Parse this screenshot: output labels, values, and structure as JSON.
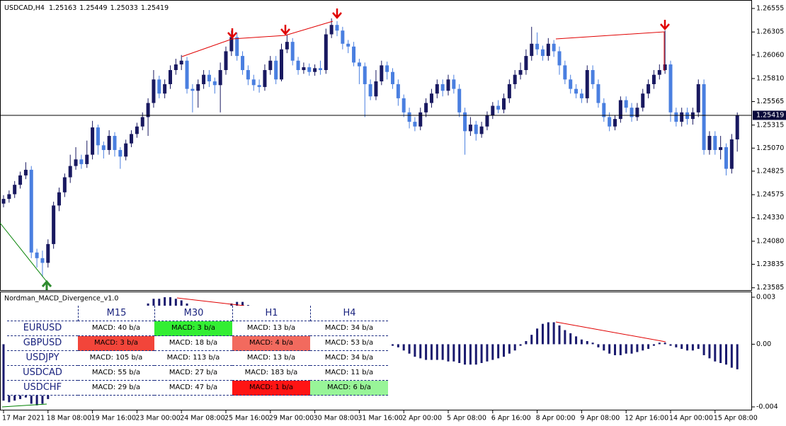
{
  "chart_data": [
    {
      "type": "candlestick",
      "title": "USDCAD,H4",
      "categories": [
        "17 Mar 2021",
        null,
        null,
        null,
        null,
        null,
        null,
        null,
        "18 Mar 08:00",
        null,
        null,
        null,
        null,
        null,
        null,
        null,
        "19 Mar 16:00",
        null,
        null,
        null,
        null,
        null,
        null,
        null,
        "23 Mar 00:00",
        null,
        null,
        null,
        null,
        null,
        null,
        null,
        "24 Mar 08:00",
        null,
        null,
        null,
        null,
        null,
        null,
        null,
        "25 Mar 16:00",
        null,
        null,
        null,
        null,
        null,
        null,
        null,
        "29 Mar 00:00",
        null,
        null,
        null,
        null,
        null,
        null,
        null,
        "30 Mar 08:00",
        null,
        null,
        null,
        null,
        null,
        null,
        null,
        "31 Mar 16:00",
        null,
        null,
        null,
        null,
        null,
        null,
        null,
        "2 Apr 00:00",
        null,
        null,
        null,
        null,
        null,
        null,
        null,
        "5 Apr 08:00",
        null,
        null,
        null,
        null,
        null,
        null,
        null,
        "6 Apr 16:00",
        null,
        null,
        null,
        null,
        null,
        null,
        null,
        "8 Apr 00:00",
        null,
        null,
        null,
        null,
        null,
        null,
        null,
        "9 Apr 08:00",
        null,
        null,
        null,
        null,
        null,
        null,
        null,
        "12 Apr 16:00",
        null,
        null,
        null,
        null,
        null,
        null,
        null,
        "14 Apr 00:00",
        null,
        null,
        null,
        null,
        null,
        null,
        null,
        "15 Apr 08:00",
        null,
        null,
        null,
        null
      ],
      "open": [
        1.2448,
        1.2453,
        1.2458,
        1.2468,
        1.2478,
        1.2484,
        1.2396,
        1.239,
        1.2385,
        1.2405,
        1.2446,
        1.246,
        1.2476,
        1.2488,
        1.2495,
        1.249,
        1.25,
        1.2529,
        1.251,
        1.2505,
        1.252,
        1.2505,
        1.2498,
        1.2512,
        1.2522,
        1.253,
        1.254,
        1.2555,
        1.258,
        1.2565,
        1.2575,
        1.259,
        1.2596,
        1.26,
        1.257,
        1.2568,
        1.2575,
        1.2585,
        1.2578,
        1.2574,
        1.259,
        1.261,
        1.2625,
        1.2605,
        1.259,
        1.258,
        1.2574,
        1.2572,
        1.259,
        1.26,
        1.258,
        1.2612,
        1.262,
        1.26,
        1.259,
        1.2593,
        1.2588,
        1.2592,
        1.259,
        1.2628,
        1.2638,
        1.2632,
        1.2618,
        1.2615,
        1.2598,
        1.2594,
        1.2575,
        1.2562,
        1.2578,
        1.2595,
        1.2588,
        1.2575,
        1.256,
        1.2545,
        1.2535,
        1.253,
        1.2545,
        1.2555,
        1.2565,
        1.2575,
        1.2568,
        1.258,
        1.257,
        1.2545,
        1.2525,
        1.2532,
        1.2522,
        1.253,
        1.2542,
        1.2552,
        1.2548,
        1.256,
        1.2575,
        1.2585,
        1.259,
        1.2605,
        1.2618,
        1.2612,
        1.2605,
        1.2618,
        1.261,
        1.2595,
        1.258,
        1.257,
        1.2565,
        1.256,
        1.259,
        1.2575,
        1.2555,
        1.254,
        1.253,
        1.2538,
        1.2558,
        1.255,
        1.254,
        1.255,
        1.2565,
        1.2575,
        1.2585,
        1.259,
        1.2596,
        1.2545,
        1.2535,
        1.2545,
        1.2538,
        1.2545,
        1.2575,
        1.2505,
        1.252,
        1.2505,
        1.2508,
        1.2485,
        1.25163
      ],
      "high": [
        1.2457,
        1.2462,
        1.2472,
        1.2482,
        1.2492,
        1.2488,
        1.24,
        1.2398,
        1.241,
        1.245,
        1.2465,
        1.248,
        1.25,
        1.2508,
        1.25,
        1.2515,
        1.2536,
        1.2532,
        1.2514,
        1.2526,
        1.2524,
        1.2508,
        1.2516,
        1.2526,
        1.2534,
        1.2545,
        1.256,
        1.259,
        1.2584,
        1.258,
        1.2595,
        1.2602,
        1.2606,
        1.2604,
        1.2575,
        1.258,
        1.259,
        1.259,
        1.2582,
        1.2598,
        1.2615,
        1.2632,
        1.263,
        1.261,
        1.2595,
        1.2585,
        1.258,
        1.2596,
        1.2605,
        1.2605,
        1.2618,
        1.2628,
        1.2624,
        1.2604,
        1.2598,
        1.2597,
        1.2596,
        1.26,
        1.2634,
        1.2645,
        1.2642,
        1.2636,
        1.2622,
        1.262,
        1.2602,
        1.2598,
        1.258,
        1.259,
        1.26,
        1.2599,
        1.2592,
        1.258,
        1.2564,
        1.255,
        1.254,
        1.255,
        1.256,
        1.257,
        1.258,
        1.258,
        1.2585,
        1.2585,
        1.2575,
        1.255,
        1.254,
        1.2536,
        1.2535,
        1.2546,
        1.2556,
        1.2558,
        1.2565,
        1.258,
        1.259,
        1.2598,
        1.2612,
        1.2636,
        1.263,
        1.2616,
        1.2624,
        1.2622,
        1.2615,
        1.26,
        1.2585,
        1.2575,
        1.257,
        1.2595,
        1.2595,
        1.258,
        1.256,
        1.2545,
        1.2542,
        1.2562,
        1.2562,
        1.2555,
        1.2555,
        1.257,
        1.258,
        1.259,
        1.2596,
        1.2632,
        1.26,
        1.255,
        1.255,
        1.255,
        1.255,
        1.258,
        1.258,
        1.2525,
        1.2525,
        1.252,
        1.2512,
        1.2522,
        1.25449
      ],
      "low": [
        1.2444,
        1.2449,
        1.2454,
        1.2464,
        1.2474,
        1.239,
        1.238,
        1.237,
        1.238,
        1.24,
        1.244,
        1.2455,
        1.247,
        1.2484,
        1.2485,
        1.2486,
        1.2495,
        1.25,
        1.2496,
        1.25,
        1.2498,
        1.2485,
        1.2494,
        1.2508,
        1.2518,
        1.2526,
        1.252,
        1.255,
        1.256,
        1.256,
        1.257,
        1.2585,
        1.259,
        1.2565,
        1.2545,
        1.255,
        1.257,
        1.2572,
        1.2565,
        1.2545,
        1.2585,
        1.2605,
        1.26,
        1.2585,
        1.2574,
        1.2568,
        1.2566,
        1.2568,
        1.2585,
        1.2575,
        1.2578,
        1.2608,
        1.2595,
        1.2585,
        1.2586,
        1.2584,
        1.2584,
        1.2585,
        1.2586,
        1.2624,
        1.2626,
        1.2612,
        1.2608,
        1.2594,
        1.2575,
        1.254,
        1.2558,
        1.2558,
        1.2574,
        1.258,
        1.257,
        1.2552,
        1.254,
        1.2528,
        1.2525,
        1.2526,
        1.254,
        1.255,
        1.256,
        1.2562,
        1.2563,
        1.2565,
        1.254,
        1.25,
        1.252,
        1.2515,
        1.2518,
        1.2526,
        1.2538,
        1.2544,
        1.2544,
        1.2555,
        1.257,
        1.258,
        1.2585,
        1.26,
        1.2606,
        1.26,
        1.26,
        1.2604,
        1.2585,
        1.2575,
        1.2565,
        1.256,
        1.2555,
        1.2555,
        1.257,
        1.255,
        1.2535,
        1.2525,
        1.2526,
        1.2534,
        1.2545,
        1.2535,
        1.2536,
        1.2546,
        1.256,
        1.257,
        1.258,
        1.2586,
        1.2535,
        1.253,
        1.253,
        1.2532,
        1.2532,
        1.254,
        1.25,
        1.25,
        1.25,
        1.2495,
        1.2478,
        1.248,
        1.25033
      ],
      "close": [
        1.2453,
        1.2458,
        1.2468,
        1.2478,
        1.2484,
        1.2396,
        1.239,
        1.2385,
        1.2405,
        1.2446,
        1.246,
        1.2476,
        1.2488,
        1.2495,
        1.249,
        1.25,
        1.2529,
        1.251,
        1.2505,
        1.252,
        1.2505,
        1.2498,
        1.2512,
        1.2522,
        1.253,
        1.254,
        1.2555,
        1.258,
        1.2565,
        1.2575,
        1.259,
        1.2596,
        1.26,
        1.257,
        1.2568,
        1.2575,
        1.2585,
        1.2578,
        1.2574,
        1.259,
        1.261,
        1.2625,
        1.2605,
        1.259,
        1.258,
        1.2574,
        1.2572,
        1.259,
        1.26,
        1.258,
        1.2612,
        1.262,
        1.26,
        1.259,
        1.2593,
        1.2588,
        1.2592,
        1.259,
        1.2628,
        1.2638,
        1.2632,
        1.2618,
        1.2615,
        1.2598,
        1.2594,
        1.2575,
        1.2562,
        1.2578,
        1.2595,
        1.2588,
        1.2575,
        1.256,
        1.2545,
        1.2535,
        1.253,
        1.2545,
        1.2555,
        1.2565,
        1.2575,
        1.2568,
        1.258,
        1.257,
        1.2545,
        1.2525,
        1.2532,
        1.2522,
        1.253,
        1.2542,
        1.2552,
        1.2548,
        1.256,
        1.2575,
        1.2585,
        1.259,
        1.2605,
        1.2618,
        1.2612,
        1.2605,
        1.2618,
        1.261,
        1.2595,
        1.258,
        1.257,
        1.2565,
        1.256,
        1.259,
        1.2575,
        1.2555,
        1.254,
        1.253,
        1.2538,
        1.2558,
        1.255,
        1.254,
        1.255,
        1.2565,
        1.2575,
        1.2585,
        1.259,
        1.2596,
        1.2545,
        1.2535,
        1.2545,
        1.2538,
        1.2545,
        1.2575,
        1.2505,
        1.252,
        1.2505,
        1.2508,
        1.2485,
        1.25163,
        1.25419
      ],
      "up_color": "#191960",
      "down_color": "#4a7fe0",
      "ylim": [
        1.2356,
        1.2663
      ],
      "yticks": [
        1.26555,
        1.26305,
        {
          "value": 1.2606,
          "label": "1.26060"
        },
        {
          "value": 1.2581,
          "label": "1.25810"
        },
        1.25565,
        1.25315,
        {
          "value": 1.2507,
          "label": "1.25070"
        },
        1.24825,
        1.24575,
        {
          "value": 1.2433,
          "label": "1.24330"
        },
        {
          "value": 1.2408,
          "label": "1.24080"
        },
        1.23835,
        1.23585
      ]
    },
    {
      "type": "bar",
      "title": "Nordman_MACD_Divergence_v1.0",
      "color": "#1a1a6e",
      "values": [
        -0.0036,
        -0.0037,
        -0.0036,
        -0.0035,
        -0.0034,
        -0.0038,
        -0.0039,
        -0.0038,
        -0.0035,
        -0.0028,
        -0.0022,
        -0.0016,
        -0.001,
        -0.0005,
        -0.0002,
        0.0003,
        0.0008,
        0.001,
        0.0012,
        0.0014,
        0.0015,
        0.0016,
        0.0018,
        0.002,
        0.0022,
        0.0024,
        0.0026,
        0.0029,
        0.0029,
        0.003,
        0.003,
        0.0029,
        0.0028,
        0.0026,
        0.0024,
        0.0022,
        0.0021,
        0.002,
        0.002,
        0.0021,
        0.0024,
        0.0026,
        0.0027,
        0.0027,
        0.0025,
        0.0023,
        0.0021,
        0.002,
        0.002,
        0.0019,
        0.0019,
        0.002,
        0.0019,
        0.0017,
        0.0016,
        0.0015,
        0.0015,
        0.0014,
        0.0016,
        0.0018,
        0.0018,
        0.0017,
        0.0015,
        0.0012,
        0.0009,
        0.0006,
        0.0003,
        0.0002,
        0.0001,
        0.0,
        -0.0001,
        -0.0002,
        -0.0004,
        -0.0006,
        -0.0008,
        -0.0009,
        -0.001,
        -0.001,
        -0.001,
        -0.001,
        -0.0011,
        -0.0011,
        -0.0012,
        -0.0013,
        -0.0013,
        -0.0013,
        -0.0012,
        -0.0011,
        -0.001,
        -0.0009,
        -0.0008,
        -0.0006,
        -0.0004,
        -0.0001,
        0.0002,
        0.0006,
        0.001,
        0.0013,
        0.0014,
        0.0014,
        0.0012,
        0.0009,
        0.0007,
        0.0005,
        0.0003,
        0.0002,
        0.0001,
        -0.0002,
        -0.0004,
        -0.0006,
        -0.0007,
        -0.0007,
        -0.0006,
        -0.0006,
        -0.0005,
        -0.0004,
        -0.0003,
        -0.0001,
        0.0001,
        0.0001,
        -0.0001,
        -0.0002,
        -0.0003,
        -0.0004,
        -0.0004,
        -0.0003,
        -0.0007,
        -0.0009,
        -0.0011,
        -0.0012,
        -0.0013,
        -0.0015,
        -0.0016
      ],
      "ylim": [
        -0.004,
        0.003
      ],
      "yticks": [
        0.003,
        {
          "value": 0,
          "label": "0.00"
        },
        -0.004
      ]
    }
  ],
  "table": {
    "columns": [
      "M15",
      "M30",
      "H1",
      "H4"
    ],
    "rows": [
      {
        "symbol": "EURUSD",
        "cells": [
          "MACD: 40 b/a",
          "MACD: 3 b/a",
          "MACD: 13 b/a",
          "MACD: 34 b/a"
        ]
      },
      {
        "symbol": "GBPUSD",
        "cells": [
          "MACD: 3 b/a",
          "MACD: 18 b/a",
          "MACD: 4 b/a",
          "MACD: 53 b/a"
        ]
      },
      {
        "symbol": "USDJPY",
        "cells": [
          "MACD: 105 b/a",
          "MACD: 113 b/a",
          "MACD: 13 b/a",
          "MACD: 34 b/a"
        ]
      },
      {
        "symbol": "USDCAD",
        "cells": [
          "MACD: 55 b/a",
          "MACD: 27 b/a",
          "MACD: 183 b/a",
          "MACD: 11 b/a"
        ]
      },
      {
        "symbol": "USDCHF",
        "cells": [
          "MACD: 29 b/a",
          "MACD: 47 b/a",
          "MACD: 1 b/a",
          "MACD: 6 b/a"
        ]
      }
    ]
  }
}
